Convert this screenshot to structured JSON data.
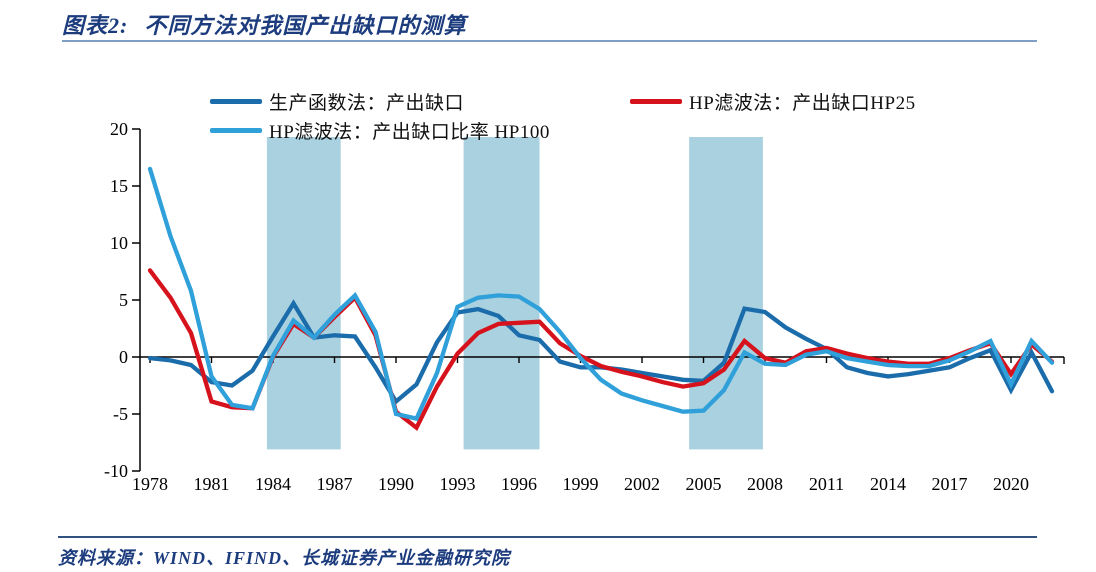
{
  "header": {
    "title_label": "图表2:",
    "title_text": "不同方法对我国产出缺口的测算"
  },
  "footer": {
    "source": "资料来源：WIND、IFIND、长城证券产业金融研究院"
  },
  "chart_data": {
    "type": "line",
    "title": "不同方法对我国产出缺口的测算",
    "xlabel": "",
    "ylabel": "",
    "ylim": [
      -10,
      20
    ],
    "xlim": [
      1978,
      2022
    ],
    "grid": false,
    "legend_position": "top",
    "x": [
      1978,
      1979,
      1980,
      1981,
      1982,
      1983,
      1984,
      1985,
      1986,
      1987,
      1988,
      1989,
      1990,
      1991,
      1992,
      1993,
      1994,
      1995,
      1996,
      1997,
      1998,
      1999,
      2000,
      2001,
      2002,
      2003,
      2004,
      2005,
      2006,
      2007,
      2008,
      2009,
      2010,
      2011,
      2012,
      2013,
      2014,
      2015,
      2016,
      2017,
      2018,
      2019,
      2020,
      2021,
      2022
    ],
    "series": [
      {
        "name": "生产函数法：产出缺口",
        "color": "#1b6cab",
        "values": [
          -0.1,
          -0.3,
          -0.7,
          -2.2,
          -2.5,
          -1.2,
          1.8,
          4.7,
          1.7,
          1.9,
          1.8,
          -0.9,
          -3.9,
          -2.4,
          1.3,
          3.9,
          4.2,
          3.6,
          1.9,
          1.5,
          -0.4,
          -0.9,
          -0.9,
          -1.1,
          -1.4,
          -1.7,
          -2.0,
          -2.1,
          -0.5,
          4.25,
          3.95,
          2.6,
          1.6,
          0.7,
          -0.9,
          -1.4,
          -1.7,
          -1.5,
          -1.2,
          -0.9,
          -0.1,
          0.6,
          -2.9,
          0.4,
          -3.0
        ]
      },
      {
        "name": "HP滤波法：产出缺口HP25",
        "color": "#d6121c",
        "values": [
          7.6,
          5.2,
          2.1,
          -3.9,
          -4.4,
          -4.5,
          0.0,
          2.9,
          1.7,
          3.5,
          5.2,
          1.9,
          -4.8,
          -6.2,
          -2.6,
          0.3,
          2.1,
          2.9,
          3.0,
          3.1,
          1.2,
          0.1,
          -0.8,
          -1.3,
          -1.7,
          -2.2,
          -2.6,
          -2.3,
          -1.1,
          1.4,
          -0.1,
          -0.5,
          0.5,
          0.8,
          0.3,
          -0.1,
          -0.4,
          -0.6,
          -0.6,
          -0.1,
          0.6,
          1.2,
          -1.5,
          1.1,
          -0.4
        ]
      },
      {
        "name": "HP滤波法：产出缺口比率 HP100",
        "color": "#2fa0d9",
        "values": [
          16.5,
          10.6,
          5.8,
          -1.7,
          -4.2,
          -4.5,
          0.1,
          3.2,
          1.7,
          3.7,
          5.4,
          2.2,
          -5.0,
          -5.4,
          -1.4,
          4.4,
          5.2,
          5.4,
          5.3,
          4.2,
          2.2,
          -0.1,
          -2.0,
          -3.2,
          -3.8,
          -4.3,
          -4.8,
          -4.7,
          -2.9,
          0.4,
          -0.6,
          -0.7,
          0.2,
          0.5,
          -0.1,
          -0.4,
          -0.7,
          -0.8,
          -0.8,
          -0.3,
          0.5,
          1.4,
          -2.4,
          1.4,
          -0.5
        ]
      }
    ],
    "y_ticks": [
      20,
      15,
      10,
      5,
      0,
      -5,
      -10
    ],
    "x_tick_years": [
      1978,
      1981,
      1984,
      1987,
      1990,
      1993,
      1996,
      1999,
      2002,
      2005,
      2008,
      2011,
      2014,
      2017,
      2020
    ],
    "bands": {
      "color": "#a9d1df",
      "y_from": -8.1,
      "y_to": 19.3,
      "ranges": [
        [
          1983.7,
          1987.3
        ],
        [
          1993.3,
          1997.0
        ],
        [
          2004.3,
          2007.9
        ]
      ]
    }
  }
}
